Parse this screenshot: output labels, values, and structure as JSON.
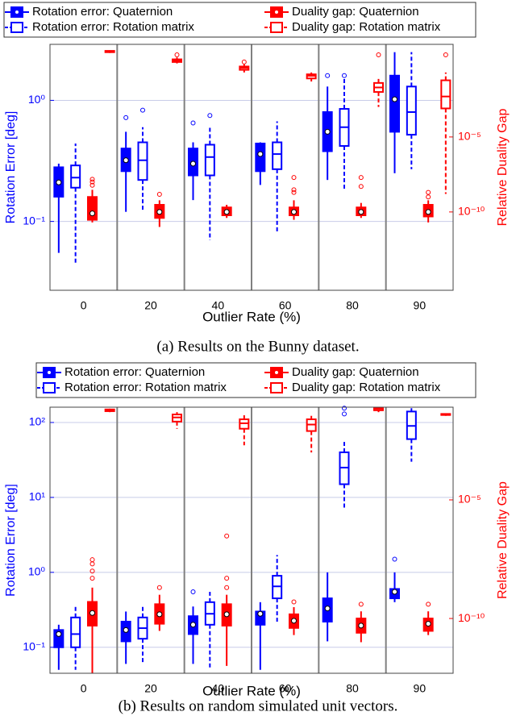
{
  "chart_data": [
    {
      "type": "box",
      "caption": "(a) Results on the Bunny dataset.",
      "xlabel": "Outlier Rate (%)",
      "ylabel": "Rotation Error [deg]",
      "y2label": "Relative Duality Gap",
      "categories": [
        "0",
        "20",
        "40",
        "60",
        "80",
        "90"
      ],
      "log_scale": true,
      "grid": true,
      "ylim": [
        0.027,
        2.9
      ],
      "yticks": [
        {
          "value": 0.1,
          "label": "10⁻¹"
        },
        {
          "value": 1,
          "label": "10⁰"
        }
      ],
      "y2lim": [
        6e-16,
        15
      ],
      "y2ticks": [
        {
          "value": 1e-10,
          "label": "10⁻¹⁰"
        },
        {
          "value": 1e-05,
          "label": "10⁻⁵"
        }
      ],
      "series": [
        {
          "name": "Rotation error: Quaternion",
          "color": "#0000ff",
          "filled": true,
          "min": [
            0.055,
            0.12,
            0.15,
            0.2,
            0.22,
            0.25
          ],
          "q1": [
            0.16,
            0.26,
            0.24,
            0.26,
            0.38,
            0.55
          ],
          "median": [
            0.21,
            0.32,
            0.3,
            0.36,
            0.55,
            1.02
          ],
          "q3": [
            0.28,
            0.4,
            0.4,
            0.44,
            0.8,
            1.6
          ],
          "max": [
            0.3,
            0.55,
            0.45,
            0.45,
            1.3,
            2.5
          ],
          "outliers": [
            [],
            [
              0.72
            ],
            [
              0.65
            ],
            [],
            [
              1.6
            ],
            []
          ]
        },
        {
          "name": "Rotation error: Rotation matrix",
          "color": "#0000ff",
          "filled": false,
          "min": [
            0.045,
            0.12,
            0.07,
            0.08,
            0.18,
            0.27
          ],
          "q1": [
            0.19,
            0.22,
            0.24,
            0.27,
            0.42,
            0.52
          ],
          "median": [
            0.23,
            0.32,
            0.34,
            0.36,
            0.6,
            0.8
          ],
          "q3": [
            0.29,
            0.45,
            0.43,
            0.45,
            0.85,
            1.3
          ],
          "max": [
            0.44,
            0.6,
            0.6,
            0.67,
            1.5,
            2.5
          ],
          "outliers": [
            [],
            [
              0.83
            ],
            [
              0.75
            ],
            [],
            [
              1.6
            ],
            []
          ]
        },
        {
          "name": "Duality gap: Quaternion",
          "color": "#ff0000",
          "filled": true,
          "axis": "y2",
          "min": [
            2e-11,
            1e-11,
            4e-11,
            3e-11,
            4e-11,
            2e-11
          ],
          "q1": [
            3e-11,
            4e-11,
            6e-11,
            6e-11,
            6e-11,
            5e-11
          ],
          "median": [
            8e-11,
            1e-10,
            1e-10,
            1e-10,
            1e-10,
            1e-10
          ],
          "q3": [
            1e-09,
            3e-10,
            2e-10,
            2e-10,
            2e-10,
            3e-10
          ],
          "max": [
            3e-09,
            6e-10,
            3e-10,
            6e-10,
            4e-10,
            6e-10
          ],
          "outliers": [
            [
              6e-09,
              1e-08,
              1.5e-08
            ],
            [
              1.5e-09
            ],
            [],
            [
              2e-09,
              3e-09,
              2e-08
            ],
            [
              5e-09,
              2e-08
            ],
            [
              1e-09,
              2e-09
            ]
          ]
        },
        {
          "name": "Duality gap: Rotation matrix",
          "color": "#ff0000",
          "filled": false,
          "axis": "y2",
          "min": [
            4,
            0.8,
            0.2,
            0.05,
            0.001,
            1.6e-09
          ],
          "q1": [
            4.5,
            1,
            0.3,
            0.08,
            0.01,
            0.0008
          ],
          "median": [
            5,
            1.2,
            0.4,
            0.12,
            0.02,
            0.005
          ],
          "q3": [
            5.5,
            1.5,
            0.5,
            0.15,
            0.04,
            0.06
          ],
          "max": [
            6,
            2,
            0.7,
            0.2,
            0.1,
            0.2
          ],
          "outliers": [
            [],
            [
              3
            ],
            [
              1
            ],
            [],
            [
              3
            ],
            [
              3
            ]
          ]
        }
      ]
    },
    {
      "type": "box",
      "caption": "(b) Results on random simulated unit vectors.",
      "xlabel": "Outlier Rate (%)",
      "ylabel": "Rotation Error [deg]",
      "y2label": "Relative Duality Gap",
      "categories": [
        "0",
        "20",
        "40",
        "60",
        "80",
        "90"
      ],
      "log_scale": true,
      "grid": true,
      "ylim": [
        0.045,
        160
      ],
      "yticks": [
        {
          "value": 0.1,
          "label": "10⁻¹"
        },
        {
          "value": 1,
          "label": "10⁰"
        },
        {
          "value": 10,
          "label": "10¹"
        },
        {
          "value": 100,
          "label": "10²"
        }
      ],
      "y2lim": [
        4.9e-13,
        0.081
      ],
      "y2ticks": [
        {
          "value": 1e-10,
          "label": "10⁻¹⁰"
        },
        {
          "value": 1e-05,
          "label": "10⁻⁵"
        }
      ],
      "series": [
        {
          "name": "Rotation error: Quaternion",
          "color": "#0000ff",
          "filled": true,
          "min": [
            0.05,
            0.06,
            0.06,
            0.05,
            0.12,
            0.4
          ],
          "q1": [
            0.1,
            0.12,
            0.15,
            0.2,
            0.22,
            0.45
          ],
          "median": [
            0.15,
            0.17,
            0.2,
            0.28,
            0.33,
            0.55
          ],
          "q3": [
            0.17,
            0.22,
            0.26,
            0.3,
            0.45,
            0.6
          ],
          "max": [
            0.2,
            0.3,
            0.35,
            0.4,
            1.0,
            1.0
          ],
          "outliers": [
            [],
            [],
            [
              0.55
            ],
            [],
            [],
            [
              1.5
            ]
          ]
        },
        {
          "name": "Rotation error: Rotation matrix",
          "color": "#0000ff",
          "filled": false,
          "min": [
            0.05,
            0.06,
            0.05,
            0.22,
            7,
            30
          ],
          "q1": [
            0.1,
            0.13,
            0.2,
            0.45,
            15,
            60
          ],
          "median": [
            0.15,
            0.18,
            0.28,
            0.65,
            25,
            90
          ],
          "q3": [
            0.25,
            0.25,
            0.4,
            0.9,
            40,
            140
          ],
          "max": [
            0.35,
            0.35,
            0.55,
            1.7,
            55,
            155
          ],
          "outliers": [
            [],
            [],
            [],
            [],
            [
              130,
              155
            ],
            []
          ]
        },
        {
          "name": "Duality gap: Quaternion",
          "color": "#ff0000",
          "filled": true,
          "axis": "y2",
          "min": [
            5e-13,
            3e-11,
            1e-12,
            2e-11,
            1e-11,
            2e-11
          ],
          "q1": [
            5e-11,
            6e-11,
            5e-11,
            4e-11,
            2.5e-11,
            3e-11
          ],
          "median": [
            1.7e-10,
            1.5e-10,
            1.5e-10,
            8e-11,
            5e-11,
            6e-11
          ],
          "q3": [
            5e-10,
            4e-10,
            4e-10,
            1.5e-10,
            1e-10,
            1e-10
          ],
          "max": [
            2e-09,
            1e-09,
            1e-09,
            3e-10,
            2e-10,
            2e-10
          ],
          "outliers": [
            [
              5e-09,
              1e-08,
              2e-08,
              3e-08
            ],
            [
              2e-09
            ],
            [
              2e-09,
              5e-09,
              3e-07
            ],
            [
              5e-10
            ],
            [
              4e-10
            ],
            [
              4e-10
            ]
          ]
        },
        {
          "name": "Duality gap: Rotation matrix",
          "color": "#ff0000",
          "filled": false,
          "axis": "y2",
          "min": [
            0.05,
            0.01,
            0.002,
            0.001,
            0.05,
            0.035
          ],
          "q1": [
            0.055,
            0.02,
            0.01,
            0.008,
            0.06,
            0.038
          ],
          "median": [
            0.06,
            0.03,
            0.017,
            0.015,
            0.07,
            0.04
          ],
          "q3": [
            0.065,
            0.04,
            0.025,
            0.025,
            0.075,
            0.042
          ],
          "max": [
            0.07,
            0.05,
            0.04,
            0.035,
            0.08,
            0.045
          ],
          "outliers": [
            [],
            [],
            [],
            [],
            [],
            []
          ]
        }
      ]
    }
  ]
}
